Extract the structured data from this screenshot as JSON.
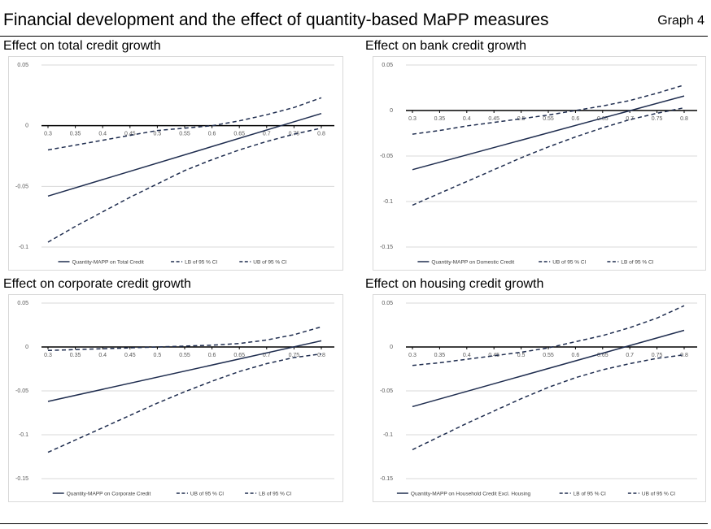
{
  "header": {
    "title": "Financial development and the effect of quantity-based MaPP measures",
    "graph_label": "Graph 4"
  },
  "colors": {
    "line": "#1f2d4f",
    "axis": "#000000",
    "grid": "#d9d9d9",
    "tick_text": "#595959"
  },
  "chart_data": [
    {
      "type": "line",
      "title": "Effect on total credit growth",
      "x": [
        0.3,
        0.8
      ],
      "xticks": [
        "0.3",
        "0.35",
        "0.4",
        "0.45",
        "0.5",
        "0.55",
        "0.6",
        "0.65",
        "0.7",
        "0.75",
        "0.8"
      ],
      "yticks": [
        "0.05",
        "0",
        "-0.05",
        "-0.1"
      ],
      "ylim": [
        -0.1,
        0.05
      ],
      "grid": true,
      "legend_position": "bottom",
      "series": [
        {
          "name": "Quantity-MAPP on Total Credit",
          "style": "solid",
          "x": [
            0.3,
            0.8
          ],
          "y": [
            -0.058,
            0.01
          ]
        },
        {
          "name": "LB of 95 % CI",
          "style": "dashed",
          "x": [
            0.3,
            0.35,
            0.4,
            0.45,
            0.5,
            0.55,
            0.6,
            0.65,
            0.7,
            0.75,
            0.8
          ],
          "y": [
            -0.096,
            -0.083,
            -0.071,
            -0.059,
            -0.048,
            -0.037,
            -0.028,
            -0.02,
            -0.013,
            -0.007,
            -0.002
          ]
        },
        {
          "name": "UB of 95 % CI",
          "style": "dashed",
          "x": [
            0.3,
            0.35,
            0.4,
            0.45,
            0.5,
            0.55,
            0.6,
            0.65,
            0.7,
            0.75,
            0.8
          ],
          "y": [
            -0.02,
            -0.016,
            -0.012,
            -0.008,
            -0.004,
            -0.002,
            0.0,
            0.004,
            0.009,
            0.015,
            0.023
          ]
        }
      ]
    },
    {
      "type": "line",
      "title": "Effect on bank credit growth",
      "x": [
        0.3,
        0.8
      ],
      "xticks": [
        "0.3",
        "0.35",
        "0.4",
        "0.45",
        "0.5",
        "0.55",
        "0.6",
        "0.65",
        "0.7",
        "0.75",
        "0.8"
      ],
      "yticks": [
        "0.05",
        "0",
        "-0.05",
        "-0.1",
        "-0.15"
      ],
      "ylim": [
        -0.15,
        0.05
      ],
      "grid": true,
      "legend_position": "bottom",
      "series": [
        {
          "name": "Quantity-MAPP on Domestic Credit",
          "style": "solid",
          "x": [
            0.3,
            0.8
          ],
          "y": [
            -0.065,
            0.016
          ]
        },
        {
          "name": "UB of 95 % CI",
          "style": "dashed",
          "x": [
            0.3,
            0.35,
            0.4,
            0.45,
            0.5,
            0.55,
            0.6,
            0.65,
            0.7,
            0.75,
            0.8
          ],
          "y": [
            -0.026,
            -0.022,
            -0.017,
            -0.013,
            -0.009,
            -0.005,
            0.0,
            0.005,
            0.011,
            0.019,
            0.028
          ]
        },
        {
          "name": "LB of 95 % CI",
          "style": "dashed",
          "x": [
            0.3,
            0.35,
            0.4,
            0.45,
            0.5,
            0.55,
            0.6,
            0.65,
            0.7,
            0.75,
            0.8
          ],
          "y": [
            -0.104,
            -0.091,
            -0.078,
            -0.065,
            -0.052,
            -0.04,
            -0.029,
            -0.019,
            -0.01,
            -0.003,
            0.003
          ]
        }
      ]
    },
    {
      "type": "line",
      "title": "Effect on corporate credit growth",
      "x": [
        0.3,
        0.8
      ],
      "xticks": [
        "0.3",
        "0.35",
        "0.4",
        "0.45",
        "0.5",
        "0.55",
        "0.6",
        "0.65",
        "0.7",
        "0.75",
        "0.8"
      ],
      "yticks": [
        "0.05",
        "0",
        "-0.05",
        "-0.1",
        "-0.15"
      ],
      "ylim": [
        -0.15,
        0.05
      ],
      "grid": true,
      "legend_position": "bottom",
      "series": [
        {
          "name": "Quantity-MAPP on Corporate Credit",
          "style": "solid",
          "x": [
            0.3,
            0.8
          ],
          "y": [
            -0.062,
            0.007
          ]
        },
        {
          "name": "UB of 95 % CI",
          "style": "dashed",
          "x": [
            0.3,
            0.35,
            0.4,
            0.45,
            0.5,
            0.55,
            0.6,
            0.65,
            0.7,
            0.75,
            0.8
          ],
          "y": [
            -0.004,
            -0.003,
            -0.002,
            -0.001,
            0.0,
            0.001,
            0.002,
            0.004,
            0.008,
            0.014,
            0.023
          ]
        },
        {
          "name": "LB of 95 % CI",
          "style": "dashed",
          "x": [
            0.3,
            0.35,
            0.4,
            0.45,
            0.5,
            0.55,
            0.6,
            0.65,
            0.7,
            0.75,
            0.8
          ],
          "y": [
            -0.12,
            -0.106,
            -0.092,
            -0.078,
            -0.064,
            -0.051,
            -0.039,
            -0.028,
            -0.019,
            -0.012,
            -0.008
          ]
        }
      ]
    },
    {
      "type": "line",
      "title": "Effect on housing credit growth",
      "x": [
        0.3,
        0.8
      ],
      "xticks": [
        "0.3",
        "0.35",
        "0.4",
        "0.45",
        "0.5",
        "0.55",
        "0.6",
        "0.65",
        "0.7",
        "0.75",
        "0.8"
      ],
      "yticks": [
        "0.05",
        "0",
        "-0.05",
        "-0.1",
        "-0.15"
      ],
      "ylim": [
        -0.15,
        0.05
      ],
      "grid": true,
      "legend_position": "bottom",
      "series": [
        {
          "name": "Quantity-MAPP on Household Credit Excl. Housing",
          "style": "solid",
          "x": [
            0.3,
            0.8
          ],
          "y": [
            -0.068,
            0.019
          ]
        },
        {
          "name": "LB of 95 % CI",
          "style": "dashed",
          "x": [
            0.3,
            0.35,
            0.4,
            0.45,
            0.5,
            0.55,
            0.6,
            0.65,
            0.7,
            0.75,
            0.8
          ],
          "y": [
            -0.117,
            -0.102,
            -0.087,
            -0.073,
            -0.059,
            -0.046,
            -0.035,
            -0.026,
            -0.019,
            -0.013,
            -0.009
          ]
        },
        {
          "name": "UB of 95 % CI",
          "style": "dashed",
          "x": [
            0.3,
            0.35,
            0.4,
            0.45,
            0.5,
            0.55,
            0.6,
            0.65,
            0.7,
            0.75,
            0.8
          ],
          "y": [
            -0.021,
            -0.018,
            -0.014,
            -0.01,
            -0.006,
            -0.001,
            0.006,
            0.013,
            0.022,
            0.033,
            0.047
          ]
        }
      ]
    }
  ]
}
